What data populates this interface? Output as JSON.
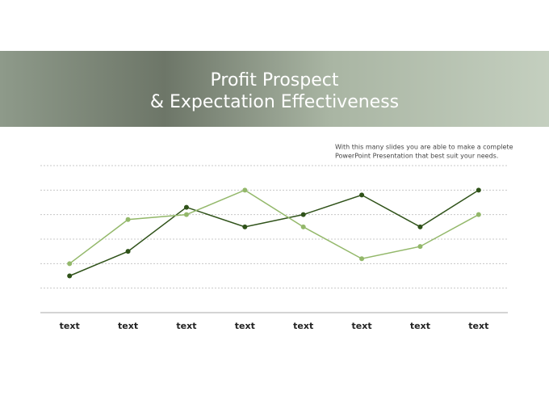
{
  "chart_data": {
    "type": "line",
    "title": [
      "Profit Prospect",
      "& Expectation Effectiveness"
    ],
    "subtitle": [
      "With this many slides you are able to make a complete",
      "PowerPoint Presentation that best suit your needs."
    ],
    "categories": [
      "text",
      "text",
      "text",
      "text",
      "text",
      "text",
      "text",
      "text"
    ],
    "series": [
      {
        "color": "#2f5219",
        "values": [
          1.5,
          2.5,
          4.3,
          3.5,
          4,
          4.8,
          3.5,
          5
        ]
      },
      {
        "color": "#93b86a",
        "values": [
          2,
          3.8,
          4,
          5,
          3.5,
          2.2,
          2.7,
          4
        ]
      }
    ],
    "ylim": [
      0,
      6
    ],
    "yticks": [
      1,
      2,
      3,
      4,
      5,
      6
    ],
    "grid": true
  }
}
